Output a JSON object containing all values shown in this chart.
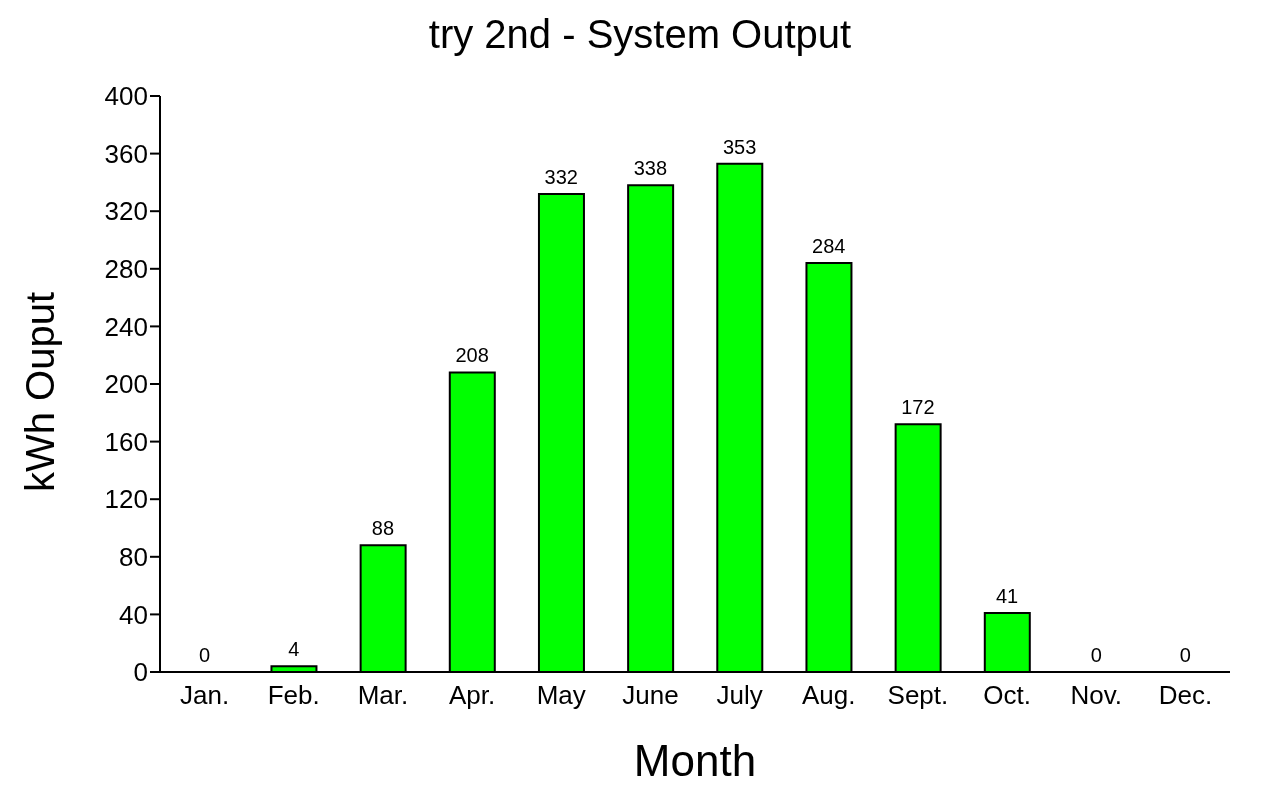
{
  "chart_data": {
    "type": "bar",
    "title": "try 2nd - System Output",
    "xlabel": "Month",
    "ylabel": "kWh Ouput",
    "categories": [
      "Jan.",
      "Feb.",
      "Mar.",
      "Apr.",
      "May",
      "June",
      "July",
      "Aug.",
      "Sept.",
      "Oct.",
      "Nov.",
      "Dec."
    ],
    "values": [
      0,
      4,
      88,
      208,
      332,
      338,
      353,
      284,
      172,
      41,
      0,
      0
    ],
    "color": "#00ff00",
    "ylim": [
      0,
      400
    ],
    "yticks": [
      0,
      40,
      80,
      120,
      160,
      200,
      240,
      280,
      320,
      360,
      400
    ],
    "grid": false,
    "data_labels": true,
    "legend": false
  }
}
